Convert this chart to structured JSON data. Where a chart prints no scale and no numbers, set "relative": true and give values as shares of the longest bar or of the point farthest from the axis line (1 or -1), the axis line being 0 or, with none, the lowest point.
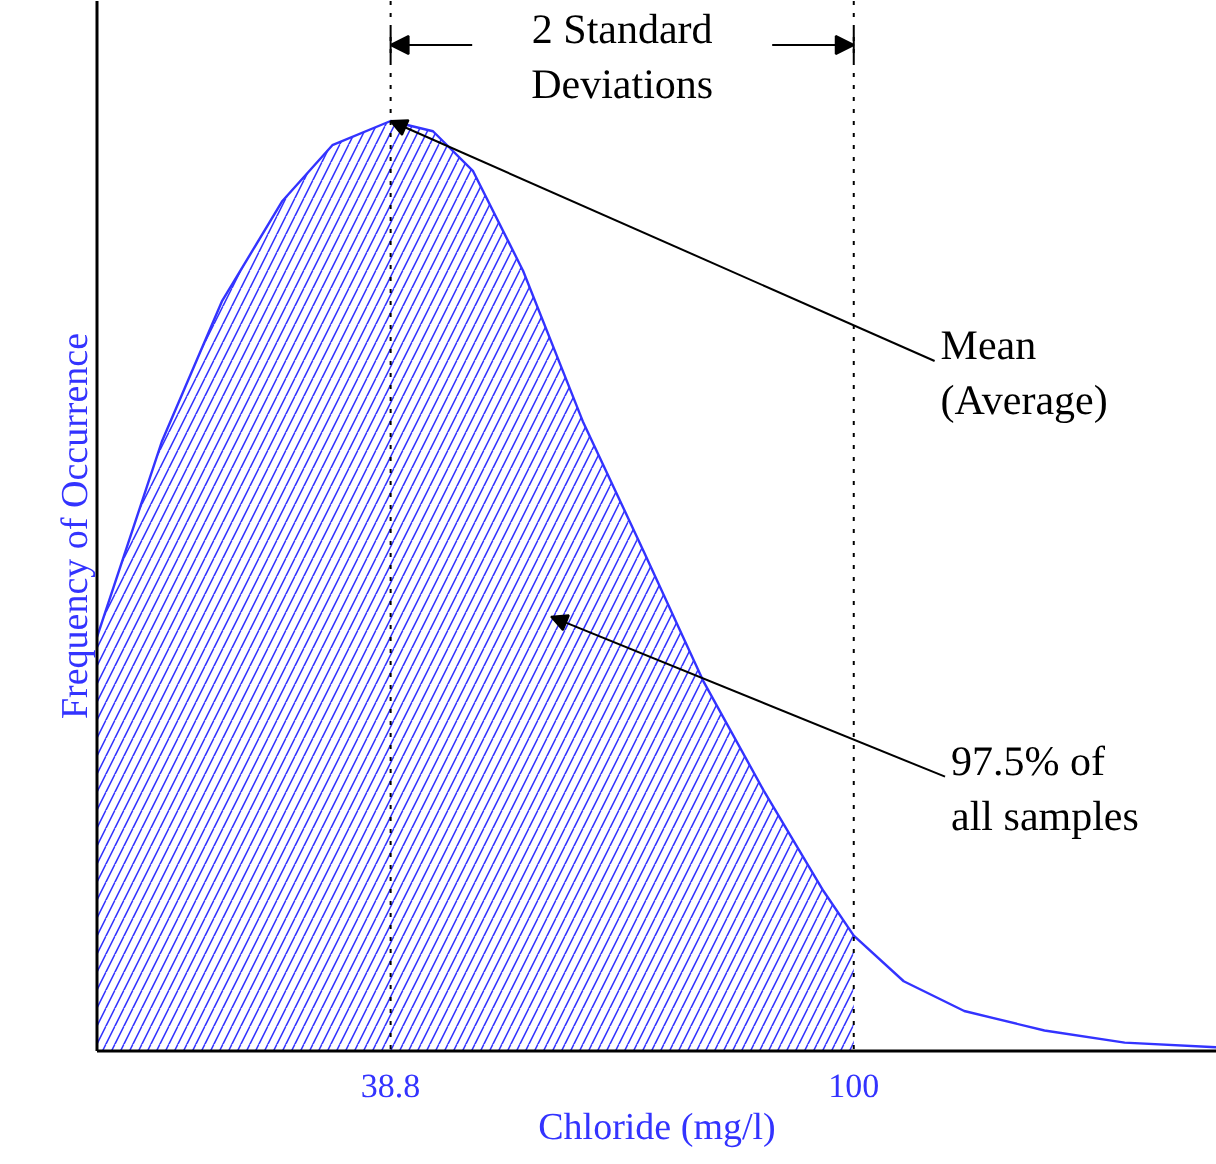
{
  "chart_data": {
    "type": "area",
    "relative": true,
    "xlabel": "Chloride (mg/l)",
    "ylabel": "Frequency of Occurrence",
    "xlim": [
      0,
      148
    ],
    "xticks": [
      38.8,
      100
    ],
    "tick_labels": "x",
    "grid": false,
    "marker": "none",
    "line_style": "solid",
    "series": [
      {
        "color": "#3333ff",
        "x": [
          0,
          8.6,
          16.5,
          24.5,
          31.1,
          38.8,
          44.4,
          49.7,
          56.3,
          64.2,
          72.2,
          80.1,
          88.1,
          96.0,
          100
        ],
        "values": [
          0.445,
          0.656,
          0.806,
          0.914,
          0.974,
          1,
          0.989,
          0.946,
          0.839,
          0.677,
          0.538,
          0.398,
          0.28,
          0.172,
          0.124
        ]
      },
      {
        "type": "line",
        "color": "#3333ff",
        "x": [
          0,
          8.6,
          16.5,
          24.5,
          31.1,
          38.8,
          44.4,
          49.7,
          56.3,
          64.2,
          72.2,
          80.1,
          88.1,
          96.0,
          100,
          106.6,
          114.6,
          125.2,
          135.8,
          148
        ],
        "values": [
          0.445,
          0.656,
          0.806,
          0.914,
          0.974,
          1,
          0.989,
          0.946,
          0.839,
          0.677,
          0.538,
          0.398,
          0.28,
          0.172,
          0.124,
          0.075,
          0.043,
          0.022,
          0.009,
          0.004
        ]
      }
    ],
    "ref_lines": [
      {
        "axis": "x",
        "value": 38.8,
        "line_style": "dotted",
        "color": "#000000"
      },
      {
        "axis": "x",
        "value": 100,
        "line_style": "dotted",
        "color": "#000000"
      }
    ],
    "annotations": [
      "2 Standard\nDeviations",
      {
        "text": "Mean\n(Average)",
        "x": 38.8,
        "y": 1
      },
      "97.5% of\nall samples"
    ]
  }
}
